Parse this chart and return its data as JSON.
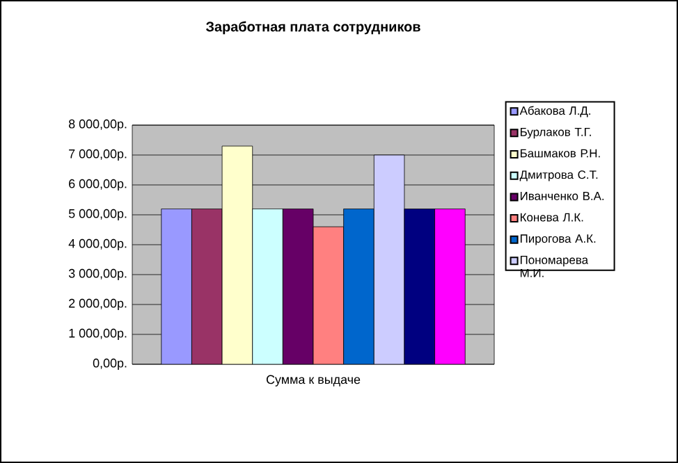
{
  "chart_data": {
    "type": "bar",
    "title": "Заработная плата сотрудников",
    "categories": [
      "Сумма  к выдаче"
    ],
    "series": [
      {
        "name": "Абакова Л.Д.",
        "color": "#9999ff",
        "values": [
          5200
        ]
      },
      {
        "name": "Бурлаков Т.Г.",
        "color": "#993366",
        "values": [
          5200
        ]
      },
      {
        "name": "Башмаков Р.Н.",
        "color": "#ffffcc",
        "values": [
          7300
        ]
      },
      {
        "name": "Дмитрова С.Т.",
        "color": "#ccffff",
        "values": [
          5200
        ]
      },
      {
        "name": "Иванченко В.А.",
        "color": "#660066",
        "values": [
          5200
        ]
      },
      {
        "name": "Конева Л.К.",
        "color": "#ff8080",
        "values": [
          4600
        ]
      },
      {
        "name": "Пирогова А.К.",
        "color": "#0066cc",
        "values": [
          5200
        ]
      },
      {
        "name": "Пономарева М.И.",
        "color": "#ccccff",
        "values": [
          7000
        ]
      },
      {
        "color": "#000080",
        "values": [
          5200
        ]
      },
      {
        "color": "#ff00ff",
        "values": [
          5200
        ]
      }
    ],
    "ylim": [
      0,
      8000
    ],
    "yticks": [
      {
        "value": 0,
        "label": "0,00р."
      },
      {
        "value": 1000,
        "label": "1 000,00р."
      },
      {
        "value": 2000,
        "label": "2 000,00р."
      },
      {
        "value": 3000,
        "label": "3 000,00р."
      },
      {
        "value": 4000,
        "label": "4 000,00р."
      },
      {
        "value": 5000,
        "label": "5 000,00р."
      },
      {
        "value": 6000,
        "label": "6 000,00р."
      },
      {
        "value": 7000,
        "label": "7 000,00р."
      },
      {
        "value": 8000,
        "label": "8 000,00р."
      }
    ],
    "grid": "y",
    "legend": "right"
  }
}
